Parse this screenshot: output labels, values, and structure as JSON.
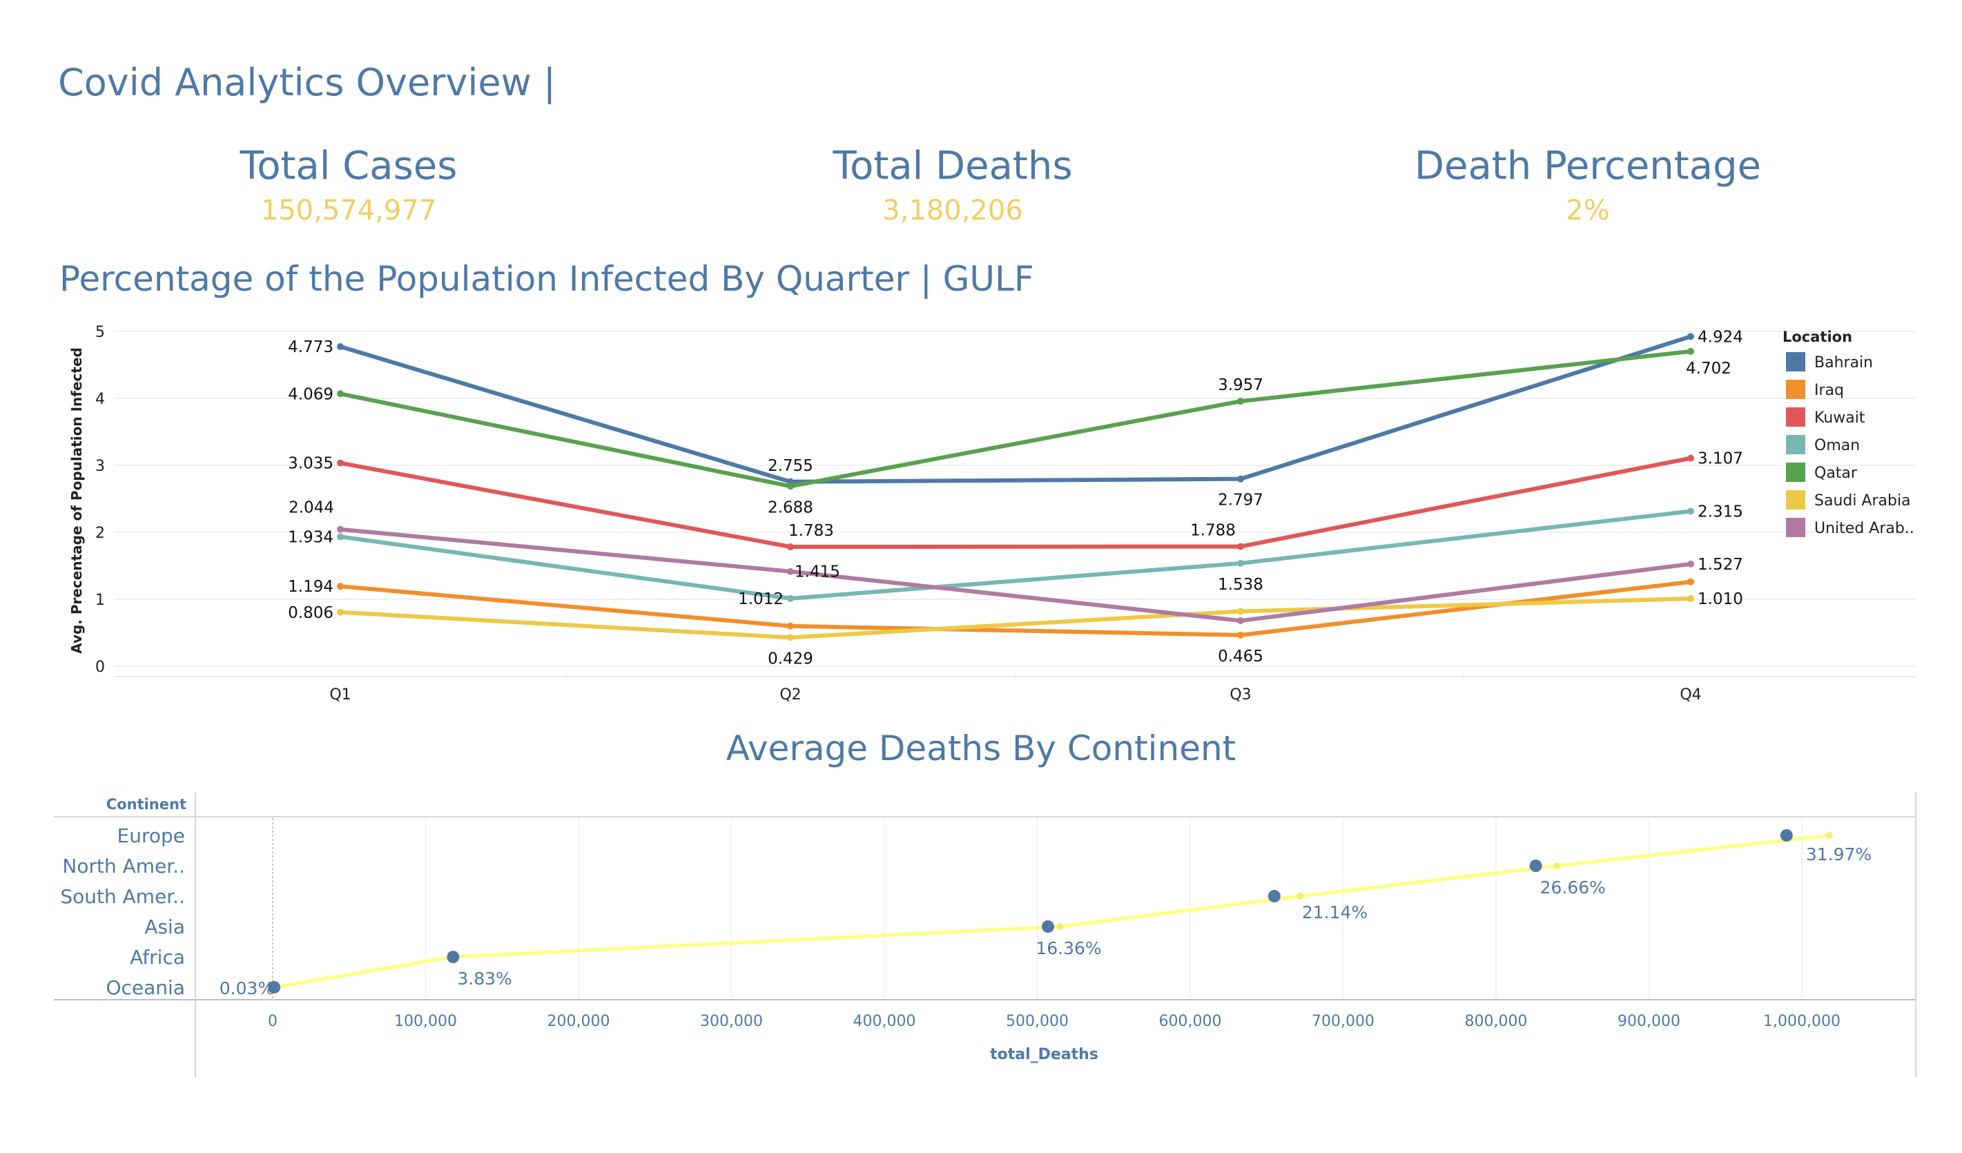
{
  "dashboard": {
    "title": "Covid Analytics Overview |"
  },
  "kpis": [
    {
      "label": "Total Cases",
      "value": "150,574,977"
    },
    {
      "label": "Total Deaths",
      "value": "3,180,206"
    },
    {
      "label": "Death Percentage",
      "value": "2%"
    }
  ],
  "colors": {
    "title": "#4e79a7",
    "kpi_value": "#f1ce63",
    "trend_line": "#ffff80",
    "dot": "#4e79a7"
  },
  "chart_data": [
    {
      "type": "line",
      "title": "Percentage of the Population Infected By Quarter | GULF",
      "xlabel": "",
      "ylabel": "Avg. Precentage of Population Infected",
      "categories": [
        "Q1",
        "Q2",
        "Q3",
        "Q4"
      ],
      "ylim": [
        0,
        5
      ],
      "yticks": [
        0,
        1,
        2,
        3,
        4,
        5
      ],
      "grid": true,
      "legend": {
        "title": "Location",
        "placement": "right"
      },
      "series": [
        {
          "name": "Bahrain",
          "color": "#4e79a7",
          "values": [
            4.773,
            2.755,
            2.797,
            4.924
          ],
          "labels": [
            "4.773",
            "2.755",
            "2.797",
            "4.924"
          ]
        },
        {
          "name": "Iraq",
          "color": "#f28e2b",
          "values": [
            1.194,
            0.6,
            0.465,
            1.26
          ],
          "labels": [
            "1.194",
            "",
            "0.465",
            ""
          ]
        },
        {
          "name": "Kuwait",
          "color": "#e15759",
          "values": [
            3.035,
            1.783,
            1.788,
            3.107
          ],
          "labels": [
            "3.035",
            "1.783",
            "1.788",
            "3.107"
          ]
        },
        {
          "name": "Oman",
          "color": "#76b7b2",
          "values": [
            1.934,
            1.012,
            1.538,
            2.315
          ],
          "labels": [
            "1.934",
            "1.012",
            "1.538",
            "2.315"
          ]
        },
        {
          "name": "Qatar",
          "color": "#59a14f",
          "values": [
            4.069,
            2.688,
            3.957,
            4.702
          ],
          "labels": [
            "4.069",
            "2.688",
            "3.957",
            "4.702"
          ]
        },
        {
          "name": "Saudi Arabia",
          "color": "#edc948",
          "values": [
            0.806,
            0.429,
            0.82,
            1.01
          ],
          "labels": [
            "0.806",
            "0.429",
            "",
            "1.010"
          ]
        },
        {
          "name": "United Arab..",
          "color": "#b07aa1",
          "values": [
            2.044,
            1.415,
            0.68,
            1.527
          ],
          "labels": [
            "2.044",
            "1.415",
            "",
            "1.527"
          ]
        }
      ]
    },
    {
      "type": "scatter",
      "title": "Average Deaths By Continent",
      "xlabel": "total_Deaths",
      "ylabel": "Continent",
      "xlim": [
        -50000,
        1065000
      ],
      "xticks": [
        0,
        100000,
        200000,
        300000,
        400000,
        500000,
        600000,
        700000,
        800000,
        900000,
        1000000
      ],
      "xtick_labels": [
        "0",
        "100,000",
        "200,000",
        "300,000",
        "400,000",
        "500,000",
        "600,000",
        "700,000",
        "800,000",
        "900,000",
        "1,000,000"
      ],
      "categories": [
        "Europe",
        "North Amer..",
        "South Amer..",
        "Asia",
        "Africa",
        "Oceania"
      ],
      "points": [
        {
          "category": "Europe",
          "x": 990000,
          "label": "31.97%"
        },
        {
          "category": "North Amer..",
          "x": 826000,
          "label": "26.66%"
        },
        {
          "category": "South Amer..",
          "x": 655000,
          "label": "21.14%"
        },
        {
          "category": "Asia",
          "x": 507000,
          "label": "16.36%"
        },
        {
          "category": "Africa",
          "x": 118000,
          "label": "3.83%"
        },
        {
          "category": "Oceania",
          "x": 1000,
          "label": "0.03%"
        }
      ],
      "trend": [
        {
          "category": "Oceania",
          "x": 1000
        },
        {
          "category": "Africa",
          "x": 118000
        },
        {
          "category": "Asia",
          "x": 515000
        },
        {
          "category": "South Amer..",
          "x": 672000
        },
        {
          "category": "North Amer..",
          "x": 840000
        },
        {
          "category": "Europe",
          "x": 1018000
        }
      ]
    }
  ]
}
